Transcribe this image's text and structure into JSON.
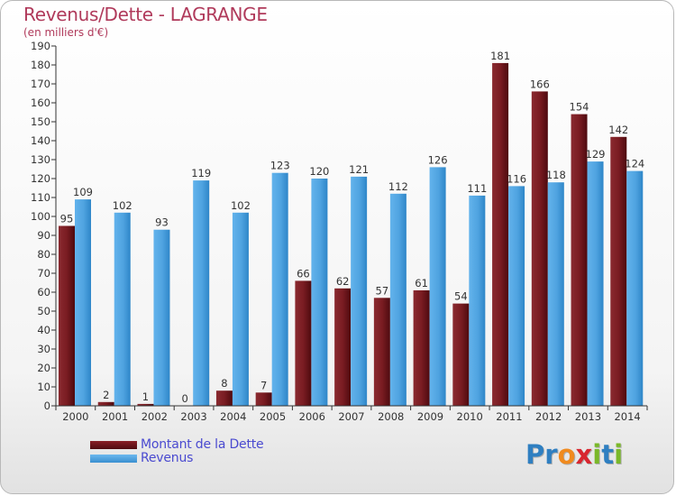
{
  "title": "Revenus/Dette - LAGRANGE",
  "subtitle": "(en milliers d'€)",
  "chart_data": {
    "type": "bar",
    "categories": [
      "2000",
      "2001",
      "2002",
      "2003",
      "2004",
      "2005",
      "2006",
      "2007",
      "2008",
      "2009",
      "2010",
      "2011",
      "2012",
      "2013",
      "2014"
    ],
    "series": [
      {
        "name": "Montant de la Dette",
        "color": "#7a1c22",
        "values": [
          95,
          2,
          1,
          0,
          8,
          7,
          66,
          62,
          57,
          61,
          54,
          181,
          166,
          154,
          142
        ]
      },
      {
        "name": "Revenus",
        "color": "#4fa3e0",
        "values": [
          109,
          102,
          93,
          119,
          102,
          123,
          120,
          121,
          112,
          126,
          111,
          116,
          118,
          129,
          124
        ]
      }
    ],
    "ylim": [
      0,
      190
    ],
    "ytick_step": 10,
    "grid": false,
    "legend_position": "bottom-left"
  },
  "legend": {
    "items": [
      {
        "label": "Montant de la Dette",
        "color": "#6b0f14"
      },
      {
        "label": "Revenus",
        "color": "#4fa3e0"
      }
    ]
  },
  "logo": {
    "text": "Proxiti",
    "letters": [
      "P",
      "r",
      "o",
      "x",
      "i",
      "t",
      "i"
    ],
    "colors": [
      "#2f7fc1",
      "#2f7fc1",
      "#f08a1e",
      "#d8262f",
      "#7ab829",
      "#2f7fc1",
      "#7ab829"
    ]
  }
}
